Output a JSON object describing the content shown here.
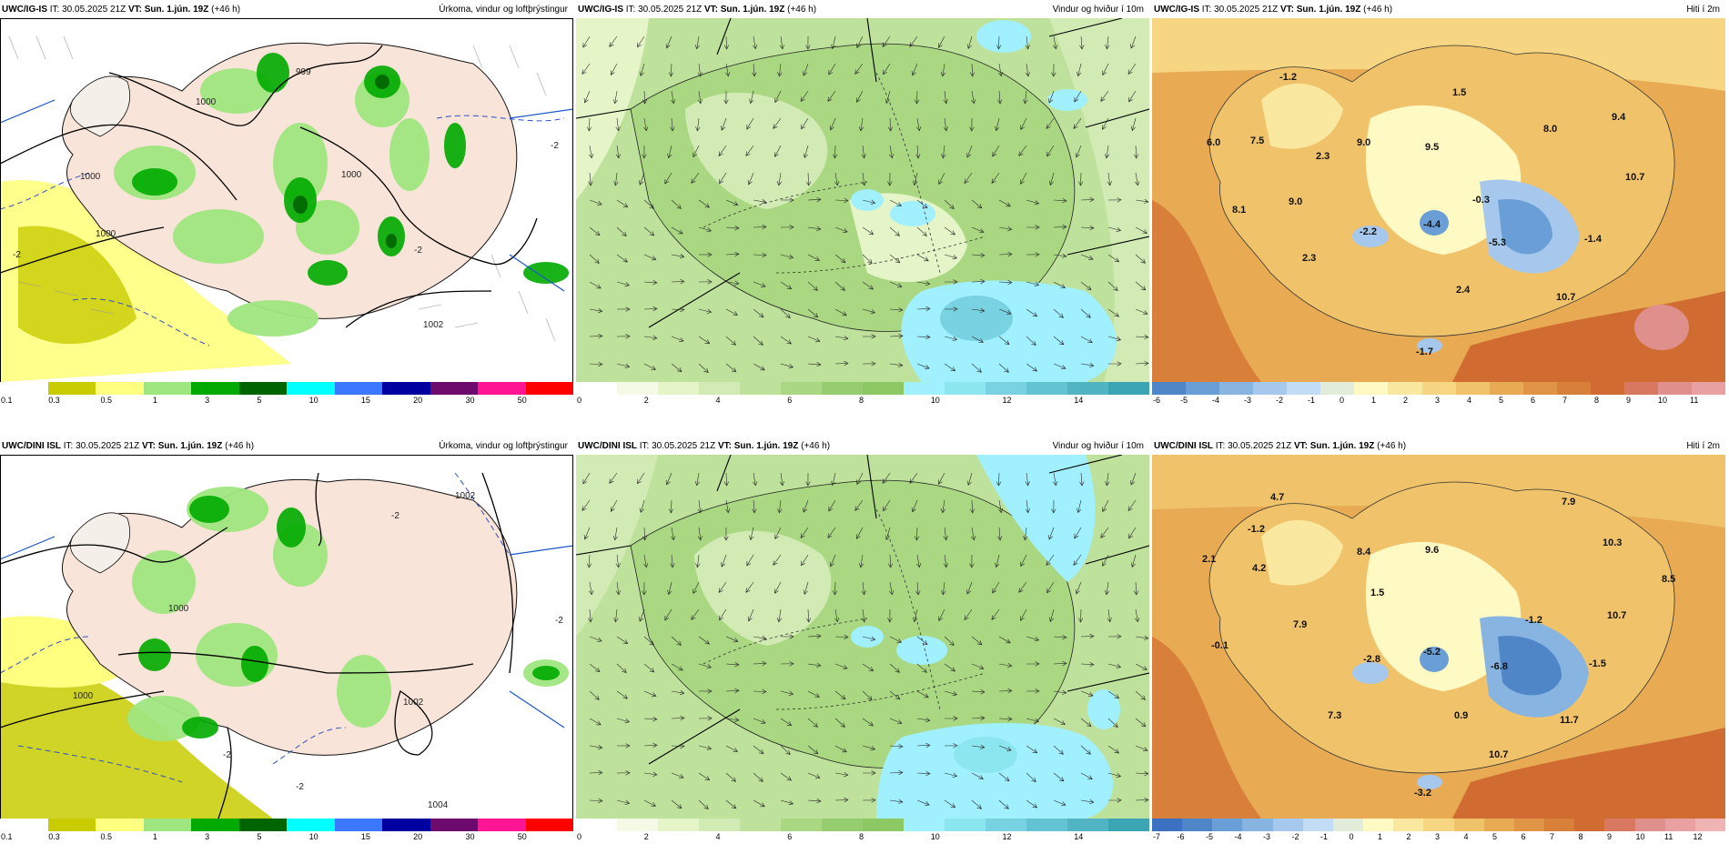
{
  "colors": {
    "precip": [
      "#ffffff",
      "#c8cc00",
      "#ffff80",
      "#a0e680",
      "#00aa00",
      "#006400",
      "#00ffff",
      "#3c78ff",
      "#0000a0",
      "#6e0a6e",
      "#ff1493",
      "#ff0000"
    ],
    "wind": [
      "#ffffff",
      "#f5fae6",
      "#e6f5c8",
      "#d2ebb4",
      "#bee19b",
      "#aad782",
      "#96cd6e",
      "#8cc864",
      "#a0f0ff",
      "#8ce6f0",
      "#78d2e1",
      "#64c3d2",
      "#50b4c3",
      "#3ca5b4"
    ],
    "temp_top": [
      "#4e86c8",
      "#6a9ed6",
      "#87b4e1",
      "#a5c8ec",
      "#c3dcf5",
      "#e1edda",
      "#fff9c4",
      "#fbe8a0",
      "#f6d683",
      "#f0c36a",
      "#e8ab54",
      "#e09445",
      "#d87f3a",
      "#d06c32",
      "#d87860",
      "#e0908c",
      "#e8a0a0"
    ],
    "temp_bot": [
      "#3c70c0",
      "#4e86c8",
      "#6a9ed6",
      "#87b4e1",
      "#a5c8ec",
      "#c3dcf5",
      "#e1edda",
      "#fff9c4",
      "#fbe8a0",
      "#f6d683",
      "#f0c36a",
      "#e8ab54",
      "#e09445",
      "#d87f3a",
      "#d06c32",
      "#d87860",
      "#e0908c",
      "#e8a0a0",
      "#f0b4b4"
    ]
  },
  "panels": {
    "top_precip": {
      "model": "UWC/IG-IS",
      "it_label": "IT:",
      "it": "30.05.2025 21Z",
      "vt_label": "VT:",
      "vt": "Sun. 1.jún. 19Z",
      "lead": "(+46 h)",
      "title": "Úrkoma, vindur og loftþrýstingur",
      "ticks": [
        "0.1",
        "0.3",
        "0.5",
        "1",
        "3",
        "5",
        "10",
        "15",
        "20",
        "30",
        "50"
      ],
      "isobars": [
        "999",
        "1000",
        "1000",
        "1000",
        "1000",
        "1002",
        "-2",
        "-2",
        "-2"
      ]
    },
    "top_wind": {
      "model": "UWC/IG-IS",
      "it_label": "IT:",
      "it": "30.05.2025 21Z",
      "vt_label": "VT:",
      "vt": "Sun. 1.jún. 19Z",
      "lead": "(+46 h)",
      "title": "Vindur og hviður í 10m",
      "ticks": [
        "0",
        "2",
        "4",
        "6",
        "8",
        "10",
        "12",
        "14"
      ]
    },
    "top_temp": {
      "model": "UWC/IG-IS",
      "it_label": "IT:",
      "it": "30.05.2025 21Z",
      "vt_label": "VT:",
      "vt": "Sun. 1.jún. 19Z",
      "lead": "(+46 h)",
      "title": "Hiti í 2m",
      "ticks": [
        "-6",
        "-5",
        "-4",
        "-3",
        "-2",
        "-1",
        "0",
        "1",
        "2",
        "3",
        "4",
        "5",
        "6",
        "7",
        "8",
        "9",
        "10",
        "11"
      ],
      "values": [
        "-1.2",
        "1.5",
        "9.4",
        "6.0",
        "7.5",
        "9.0",
        "9.5",
        "8.0",
        "2.3",
        "10.7",
        "8.1",
        "9.0",
        "-0.3",
        "-2.2",
        "-4.4",
        "-5.3",
        "-1.4",
        "2.3",
        "2.4",
        "10.7",
        "-1.7"
      ]
    },
    "bot_precip": {
      "model": "UWC/DINI ISL",
      "it_label": "IT:",
      "it": "30.05.2025 21Z",
      "vt_label": "VT:",
      "vt": "Sun. 1.jún. 19Z",
      "lead": "(+46 h)",
      "title": "Úrkoma, vindur og loftþrýstingur",
      "ticks": [
        "0.1",
        "0.3",
        "0.5",
        "1",
        "3",
        "5",
        "10",
        "15",
        "20",
        "30",
        "50"
      ],
      "isobars": [
        "1000",
        "1000",
        "1002",
        "1002",
        "1004",
        "-2",
        "-2",
        "-2",
        "-2"
      ]
    },
    "bot_wind": {
      "model": "UWC/DINI ISL",
      "it_label": "IT:",
      "it": "30.05.2025 21Z",
      "vt_label": "VT:",
      "vt": "Sun. 1.jún. 19Z",
      "lead": "(+46 h)",
      "title": "Vindur og hviður í 10m",
      "ticks": [
        "0",
        "2",
        "4",
        "6",
        "8",
        "10",
        "12",
        "14"
      ]
    },
    "bot_temp": {
      "model": "UWC/DINI ISL",
      "it_label": "IT:",
      "it": "30.05.2025 21Z",
      "vt_label": "VT:",
      "vt": "Sun. 1.jún. 19Z",
      "lead": "(+46 h)",
      "title": "Hiti í 2m",
      "ticks": [
        "-7",
        "-6",
        "-5",
        "-4",
        "-3",
        "-2",
        "-1",
        "0",
        "1",
        "2",
        "3",
        "4",
        "5",
        "6",
        "7",
        "8",
        "9",
        "10",
        "11",
        "12"
      ],
      "values": [
        "4.7",
        "7.9",
        "-1.2",
        "2.1",
        "4.2",
        "8.4",
        "9.6",
        "10.3",
        "8.5",
        "1.5",
        "-1.2",
        "10.7",
        "7.9",
        "-0.1",
        "-2.8",
        "-5.2",
        "-6.8",
        "-1.5",
        "7.3",
        "0.9",
        "11.7",
        "10.7",
        "-3.2"
      ]
    }
  }
}
